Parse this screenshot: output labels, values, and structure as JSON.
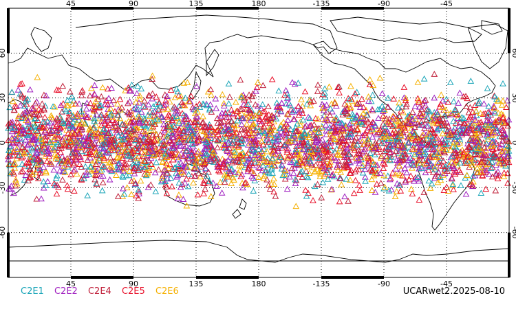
{
  "map": {
    "projection": "cylindrical equidistant",
    "center_longitude": 180,
    "lon_range": [
      0,
      360
    ],
    "lat_range": [
      -90,
      90
    ],
    "grid": "dotted",
    "lon_ticks": [
      "45",
      "90",
      "135",
      "180",
      "-135",
      "-90",
      "-45"
    ],
    "lat_ticks": [
      "60",
      "30",
      "0",
      "-30",
      "-60"
    ],
    "marker": "open triangle",
    "observation_band_latitude": [
      -45,
      45
    ],
    "land_outline_color": "#000000",
    "grid_color": "#000000"
  },
  "series": [
    {
      "name": "C2E1",
      "color": "#1aa5b8"
    },
    {
      "name": "C2E2",
      "color": "#a020c0"
    },
    {
      "name": "C2E4",
      "color": "#c0203a"
    },
    {
      "name": "C2E5",
      "color": "#e8102a"
    },
    {
      "name": "C2E6",
      "color": "#f5b000"
    }
  ],
  "caption": "UCARwet2.2025-08-10"
}
